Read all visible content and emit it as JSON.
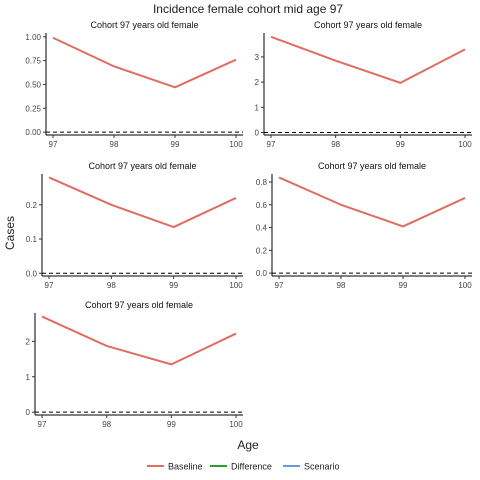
{
  "title": "Incidence female cohort mid age 97",
  "xlabel": "Age",
  "ylabel": "Cases",
  "legend": {
    "position": "bottom",
    "items": [
      {
        "name": "Baseline",
        "color": "#E06C63"
      },
      {
        "name": "Difference",
        "color": "#2CA02C"
      },
      {
        "name": "Scenario",
        "color": "#6699DD"
      }
    ]
  },
  "chart_data": [
    {
      "type": "line",
      "title": "Cohort 97 years old female",
      "x": [
        97,
        98,
        99,
        100
      ],
      "xticks": [
        "97",
        "98",
        "99",
        "100"
      ],
      "yticks": [
        "0.00",
        "0.25",
        "0.50",
        "0.75",
        "1.00"
      ],
      "ytick_values": [
        0,
        0.25,
        0.5,
        0.75,
        1.0
      ],
      "ylim": [
        -0.03,
        1.04
      ],
      "reference_line": 0,
      "series": [
        {
          "name": "Baseline",
          "values": [
            0.99,
            0.69,
            0.47,
            0.76
          ]
        }
      ]
    },
    {
      "type": "line",
      "title": "Cohort 97 years old female",
      "x": [
        97,
        98,
        99,
        100
      ],
      "xticks": [
        "97",
        "98",
        "99",
        "100"
      ],
      "yticks": [
        "0",
        "1",
        "2",
        "3"
      ],
      "ytick_values": [
        0,
        1,
        2,
        3
      ],
      "ylim": [
        -0.1,
        3.95
      ],
      "reference_line": 0,
      "series": [
        {
          "name": "Baseline",
          "values": [
            3.8,
            2.85,
            1.97,
            3.3
          ]
        }
      ]
    },
    {
      "type": "line",
      "title": "Cohort 97 years old female",
      "x": [
        97,
        98,
        99,
        100
      ],
      "xticks": [
        "97",
        "98",
        "99",
        "100"
      ],
      "yticks": [
        "0.0",
        "0.1",
        "0.2"
      ],
      "ytick_values": [
        0,
        0.1,
        0.2
      ],
      "ylim": [
        -0.008,
        0.29
      ],
      "reference_line": 0,
      "series": [
        {
          "name": "Baseline",
          "values": [
            0.28,
            0.2,
            0.135,
            0.22
          ]
        }
      ]
    },
    {
      "type": "line",
      "title": "Cohort 97 years old female",
      "x": [
        97,
        98,
        99,
        100
      ],
      "xticks": [
        "97",
        "98",
        "99",
        "100"
      ],
      "yticks": [
        "0.0",
        "0.2",
        "0.4",
        "0.6",
        "0.8"
      ],
      "ytick_values": [
        0,
        0.2,
        0.4,
        0.6,
        0.8
      ],
      "ylim": [
        -0.025,
        0.87
      ],
      "reference_line": 0,
      "series": [
        {
          "name": "Baseline",
          "values": [
            0.84,
            0.6,
            0.41,
            0.66
          ]
        }
      ]
    },
    {
      "type": "line",
      "title": "Cohort 97 years old female",
      "x": [
        97,
        98,
        99,
        100
      ],
      "xticks": [
        "97",
        "98",
        "99",
        "100"
      ],
      "yticks": [
        "0",
        "1",
        "2"
      ],
      "ytick_values": [
        0,
        1,
        2
      ],
      "ylim": [
        -0.08,
        2.8
      ],
      "reference_line": 0,
      "series": [
        {
          "name": "Baseline",
          "values": [
            2.7,
            1.87,
            1.35,
            2.22
          ]
        }
      ]
    }
  ]
}
